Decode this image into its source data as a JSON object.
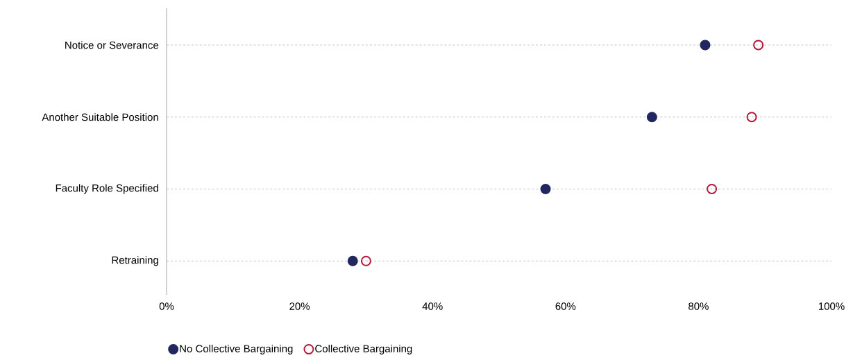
{
  "chart_data": {
    "type": "scatter",
    "orientation": "horizontal",
    "categories": [
      "Notice or Severance",
      "Another Suitable Position",
      "Faculty Role Specified",
      "Retraining"
    ],
    "series": [
      {
        "name": "No Collective Bargaining",
        "color": "#23275f",
        "values": [
          81,
          73,
          57,
          28
        ]
      },
      {
        "name": "Collective Bargaining",
        "color": "#b5183a",
        "values": [
          89,
          88,
          82,
          30
        ]
      }
    ],
    "xlim": [
      0,
      100
    ],
    "xticks": [
      {
        "value": 0,
        "label": "0%"
      },
      {
        "value": 20,
        "label": "20%"
      },
      {
        "value": 40,
        "label": "40%"
      },
      {
        "value": 60,
        "label": "60%"
      },
      {
        "value": 80,
        "label": "80%"
      },
      {
        "value": 100,
        "label": "100%"
      }
    ],
    "grid": "y",
    "legend": "bottom",
    "marker": "circle"
  }
}
